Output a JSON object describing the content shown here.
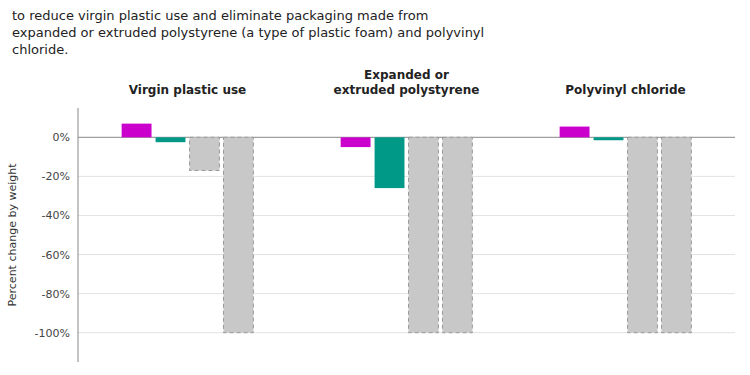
{
  "chart_data": {
    "type": "bar",
    "title": "to reduce virgin plastic use and eliminate packaging made from\nexpanded or extruded polystyrene (a type of plastic foam) and polyvinyl\nchloride.",
    "y_label": "Percent change by weight",
    "categories": [
      "Virgin plastic use",
      "Expanded or\nextruded polystyrene",
      "Polyvinyl chloride"
    ],
    "series": [
      {
        "color": "#cc00cc",
        "values": [
          7.0,
          -5.0,
          5.5
        ]
      },
      {
        "color": "#009988",
        "values": [
          -2.5,
          -26.0,
          -1.5
        ]
      },
      {
        "color": "#c8c8c8",
        "line_style": "dashed",
        "values": [
          -17.0,
          -100,
          -100
        ]
      },
      {
        "color": "#c8c8c8",
        "line_style": "dashed",
        "values": [
          -100,
          -100,
          -100
        ]
      }
    ],
    "ylim": [
      -115,
      15
    ],
    "yticks": [
      {
        "value": 0,
        "label": "0%"
      },
      {
        "value": -20,
        "label": "-20%"
      },
      {
        "value": -40,
        "label": "-40%"
      },
      {
        "value": -60,
        "label": "-60%"
      },
      {
        "value": -80,
        "label": "-80%"
      },
      {
        "value": -100,
        "label": "-100%"
      }
    ],
    "grid": true
  }
}
